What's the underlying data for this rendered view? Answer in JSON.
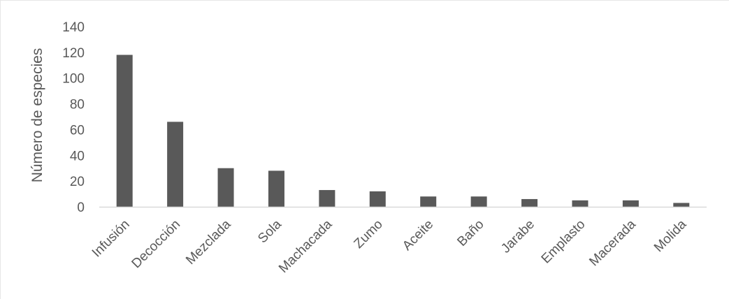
{
  "chart_data": {
    "type": "bar",
    "title": "",
    "xlabel": "",
    "ylabel": "Número de especies",
    "ylim": [
      0,
      140
    ],
    "yticks": [
      0,
      20,
      40,
      60,
      80,
      100,
      120,
      140
    ],
    "grid": false,
    "legend": "none",
    "categories": [
      "Infusión",
      "Decocción",
      "Mezclada",
      "Sola",
      "Machacada",
      "Zumo",
      "Aceite",
      "Baño",
      "Jarabe",
      "Emplasto",
      "Macerada",
      "Molida"
    ],
    "series": [
      {
        "values": [
          118,
          66,
          30,
          28,
          13,
          12,
          8,
          8,
          6,
          5,
          5,
          3
        ]
      }
    ],
    "colors": {
      "bar": "#595959",
      "axis": "#d9d9d9",
      "text": "#595959"
    }
  }
}
